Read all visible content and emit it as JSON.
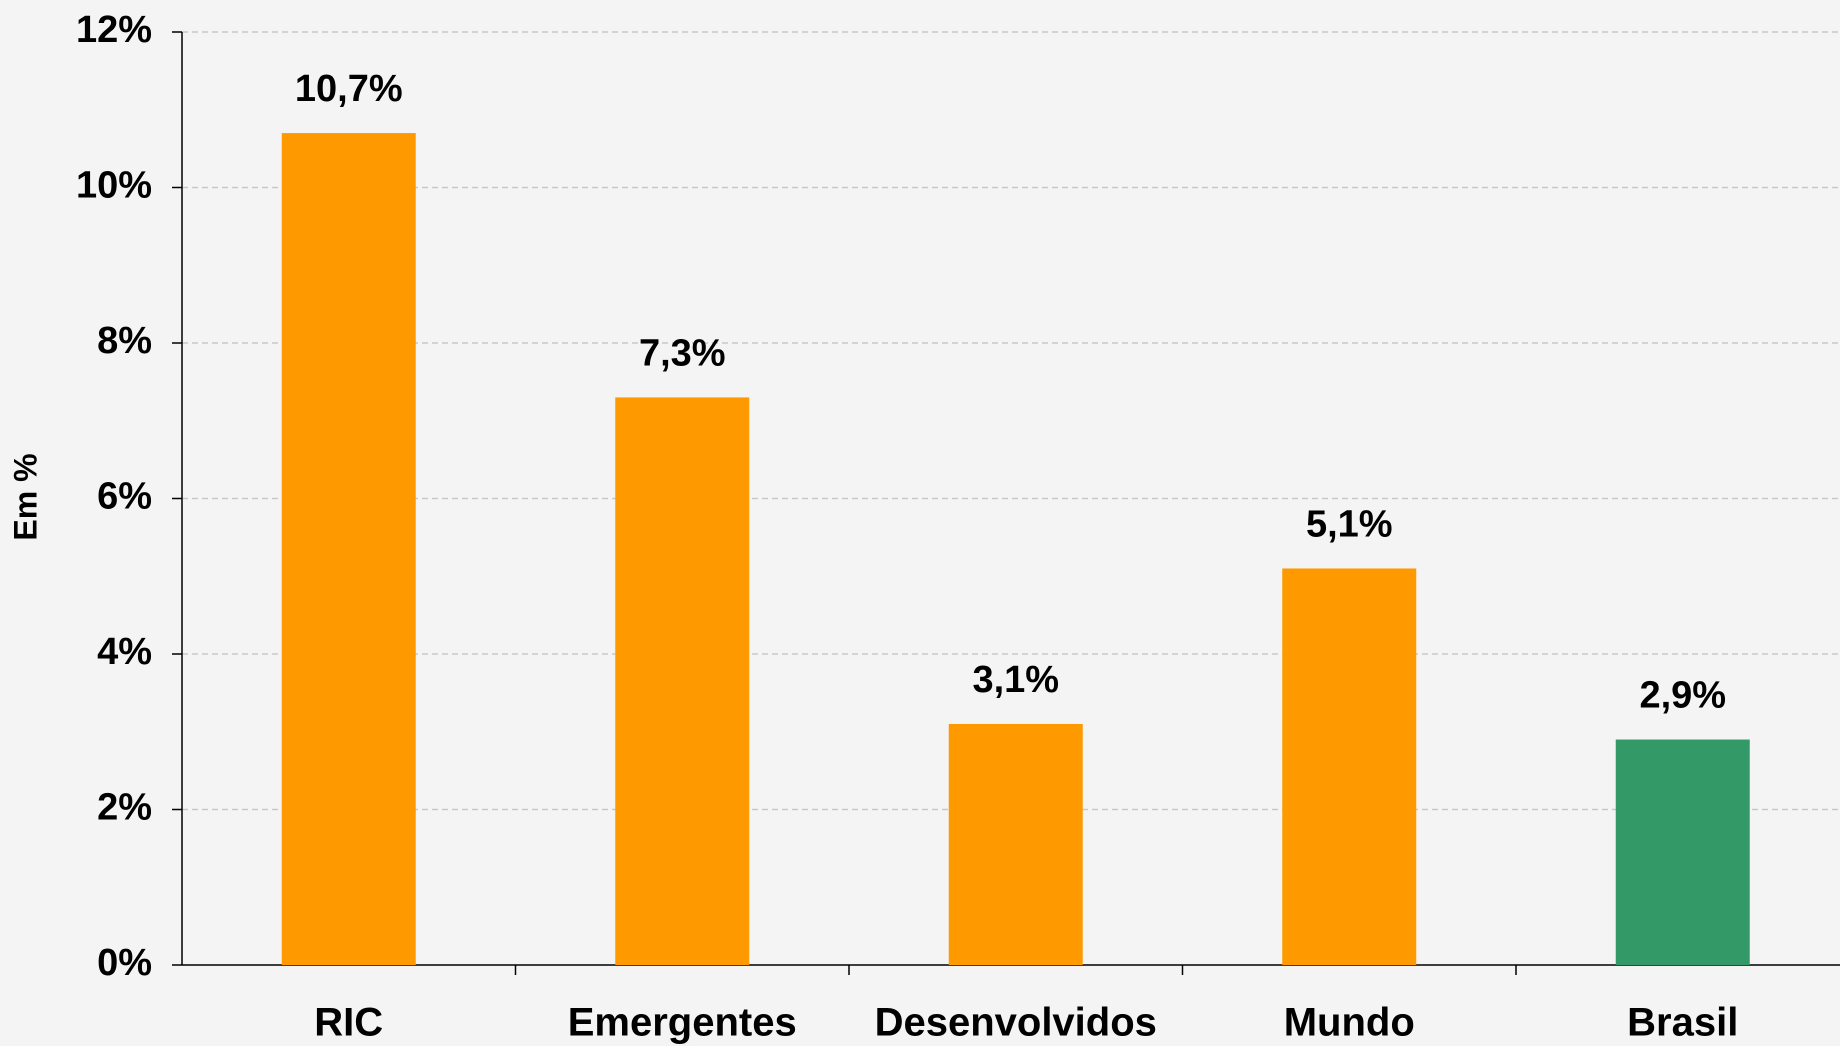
{
  "chart_data": {
    "type": "bar",
    "y_label": "Em %",
    "categories": [
      "RIC",
      "Emergentes",
      "Desenvolvidos",
      "Mundo",
      "Brasil"
    ],
    "values": [
      10.7,
      7.3,
      3.1,
      5.1,
      2.9
    ],
    "value_labels": [
      "10,7%",
      "7,3%",
      "3,1%",
      "5,1%",
      "2,9%"
    ],
    "colors": [
      "#ff9900",
      "#ff9900",
      "#ff9900",
      "#ff9900",
      "#339966"
    ],
    "ylim": [
      0,
      12
    ],
    "yticks": [
      {
        "value": 0,
        "label": "0%"
      },
      {
        "value": 2,
        "label": "2%"
      },
      {
        "value": 4,
        "label": "4%"
      },
      {
        "value": 6,
        "label": "6%"
      },
      {
        "value": 8,
        "label": "8%"
      },
      {
        "value": 10,
        "label": "10%"
      },
      {
        "value": 12,
        "label": "12%"
      }
    ],
    "grid": true
  }
}
